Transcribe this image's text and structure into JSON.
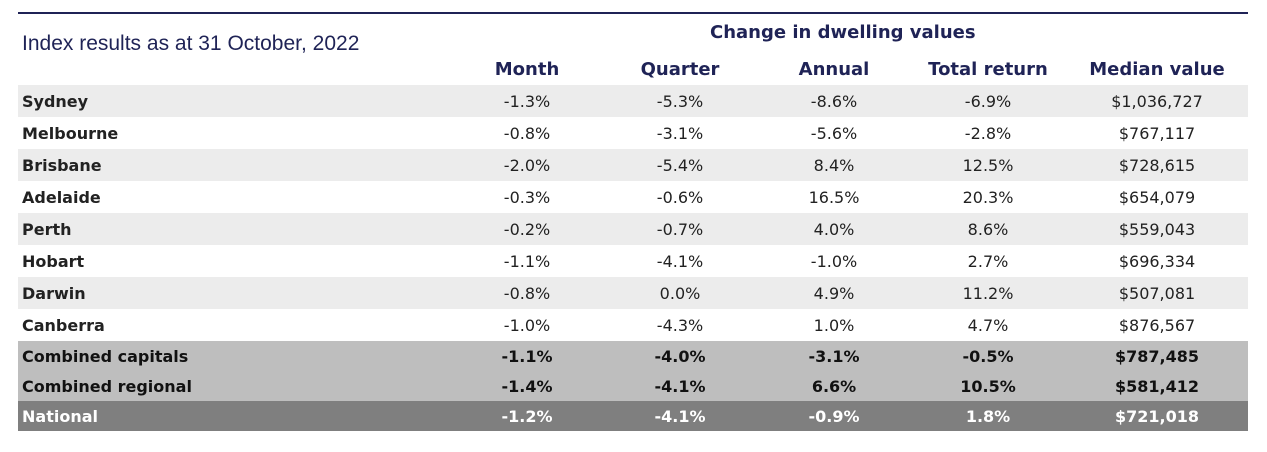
{
  "title": "Index results as at 31 October, 2022",
  "group_header": "Change in dwelling values",
  "columns": [
    "Month",
    "Quarter",
    "Annual",
    "Total return",
    "Median value"
  ],
  "rows": [
    {
      "name": "Sydney",
      "month": "-1.3%",
      "quarter": "-5.3%",
      "annual": "-8.6%",
      "total_return": "-6.9%",
      "median": "$1,036,727"
    },
    {
      "name": "Melbourne",
      "month": "-0.8%",
      "quarter": "-3.1%",
      "annual": "-5.6%",
      "total_return": "-2.8%",
      "median": "$767,117"
    },
    {
      "name": "Brisbane",
      "month": "-2.0%",
      "quarter": "-5.4%",
      "annual": "8.4%",
      "total_return": "12.5%",
      "median": "$728,615"
    },
    {
      "name": "Adelaide",
      "month": "-0.3%",
      "quarter": "-0.6%",
      "annual": "16.5%",
      "total_return": "20.3%",
      "median": "$654,079"
    },
    {
      "name": "Perth",
      "month": "-0.2%",
      "quarter": "-0.7%",
      "annual": "4.0%",
      "total_return": "8.6%",
      "median": "$559,043"
    },
    {
      "name": "Hobart",
      "month": "-1.1%",
      "quarter": "-4.1%",
      "annual": "-1.0%",
      "total_return": "2.7%",
      "median": "$696,334"
    },
    {
      "name": "Darwin",
      "month": "-0.8%",
      "quarter": "0.0%",
      "annual": "4.9%",
      "total_return": "11.2%",
      "median": "$507,081"
    },
    {
      "name": "Canberra",
      "month": "-1.0%",
      "quarter": "-4.3%",
      "annual": "1.0%",
      "total_return": "4.7%",
      "median": "$876,567"
    },
    {
      "name": "Combined capitals",
      "month": "-1.1%",
      "quarter": "-4.0%",
      "annual": "-3.1%",
      "total_return": "-0.5%",
      "median": "$787,485"
    },
    {
      "name": "Combined regional",
      "month": "-1.4%",
      "quarter": "-4.1%",
      "annual": "6.6%",
      "total_return": "10.5%",
      "median": "$581,412"
    },
    {
      "name": "National",
      "month": "-1.2%",
      "quarter": "-4.1%",
      "annual": "-0.9%",
      "total_return": "1.8%",
      "median": "$721,018"
    }
  ],
  "colors": {
    "header_text": "#1f2356",
    "stripe": "#ececec",
    "combined_bg": "#bebebe",
    "national_bg": "#7f7f7f"
  }
}
